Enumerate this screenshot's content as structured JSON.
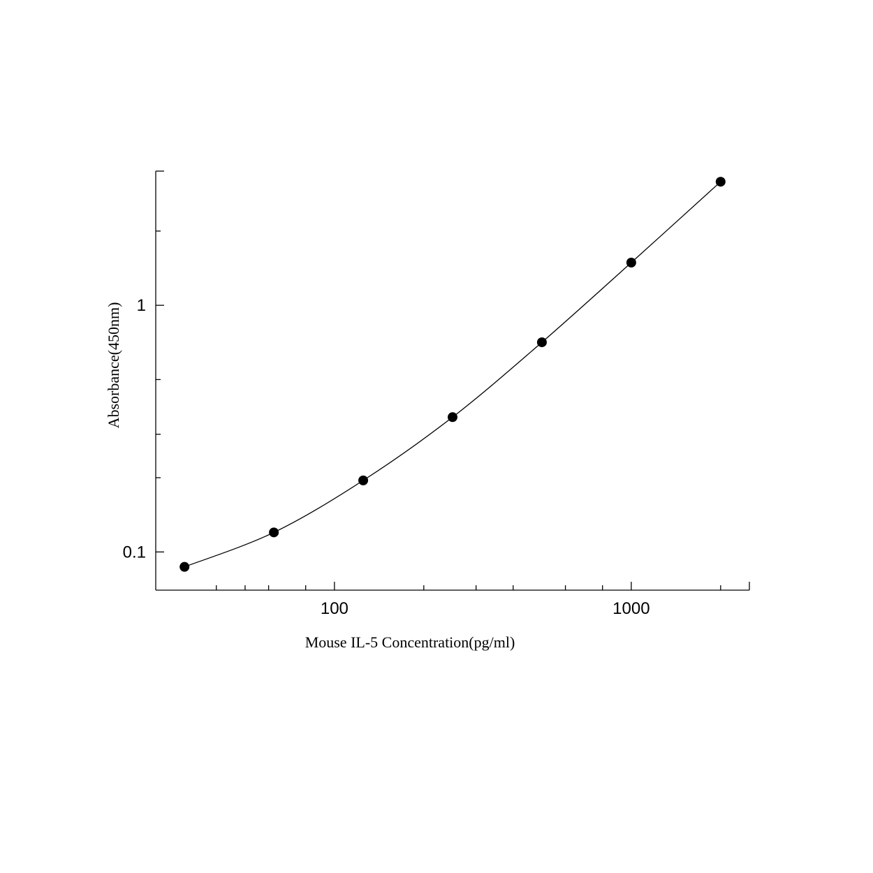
{
  "chart_data": {
    "type": "scatter",
    "x_label": "Mouse IL-5 Concentration(pg/ml)",
    "y_label": "Absorbance(450nm)",
    "x": [
      31.25,
      62.5,
      125,
      250,
      500,
      1000,
      2000
    ],
    "series": [
      {
        "color": "#000000",
        "values": [
          0.087,
          0.12,
          0.195,
          0.352,
          0.708,
          1.49,
          3.17
        ]
      }
    ],
    "xlim": [
      25,
      2500
    ],
    "ylim": [
      0.07,
      3.5
    ],
    "xticks": [
      100,
      1000
    ],
    "yticks": [
      0.1,
      1
    ],
    "xminorticks": [
      40,
      50,
      60,
      80,
      200,
      300,
      400,
      600,
      800,
      2000
    ],
    "yminorticks": [
      0.2,
      0.3,
      0.5,
      2
    ],
    "log_x": true,
    "log_y": true,
    "fit_line": true
  }
}
